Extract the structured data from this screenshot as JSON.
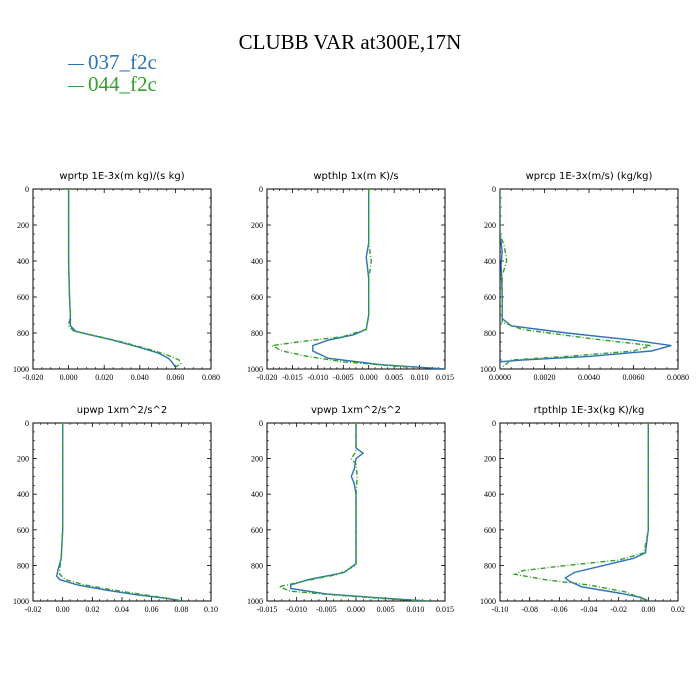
{
  "title": "CLUBB VAR at300E,17N",
  "legend": [
    {
      "label": "037_f2c",
      "color": "#2b72b8"
    },
    {
      "label": "044_f2c",
      "color": "#33a02c"
    }
  ],
  "chart_data": [
    {
      "type": "line",
      "title": "wprtp 1E-3x(m kg)/(s kg)",
      "xlim": [
        -0.02,
        0.08
      ],
      "xticks": [
        "-0.020",
        "0.000",
        "0.020",
        "0.040",
        "0.060",
        "0.080"
      ],
      "xtick_values": [
        -0.02,
        0.0,
        0.02,
        0.04,
        0.06,
        0.08
      ],
      "ylim": [
        1000,
        0
      ],
      "yticks": [
        "0",
        "200",
        "400",
        "600",
        "800",
        "1000"
      ],
      "series": [
        {
          "name": "037_f2c",
          "points": [
            [
              0.0,
              0
            ],
            [
              0.0,
              200
            ],
            [
              0.0,
              400
            ],
            [
              0.0005,
              600
            ],
            [
              0.001,
              700
            ],
            [
              0.001,
              760
            ],
            [
              0.004,
              790
            ],
            [
              0.012,
              810
            ],
            [
              0.025,
              840
            ],
            [
              0.04,
              880
            ],
            [
              0.05,
              910
            ],
            [
              0.056,
              940
            ],
            [
              0.058,
              960
            ],
            [
              0.06,
              990
            ]
          ]
        },
        {
          "name": "044_f2c",
          "points": [
            [
              0.0,
              0
            ],
            [
              0.0,
              200
            ],
            [
              0.0,
              400
            ],
            [
              0.0005,
              600
            ],
            [
              0.001,
              700
            ],
            [
              0.0,
              760
            ],
            [
              0.003,
              790
            ],
            [
              0.015,
              815
            ],
            [
              0.03,
              850
            ],
            [
              0.045,
              890
            ],
            [
              0.055,
              920
            ],
            [
              0.062,
              950
            ],
            [
              0.063,
              970
            ],
            [
              0.06,
              990
            ]
          ]
        }
      ]
    },
    {
      "type": "line",
      "title": "wpthlp 1x(m K)/s",
      "xlim": [
        -0.02,
        0.015
      ],
      "xticks": [
        "-0.020",
        "-0.015",
        "-0.010",
        "-0.005",
        "0.000",
        "0.005",
        "0.010",
        "0.015"
      ],
      "xtick_values": [
        -0.02,
        -0.015,
        -0.01,
        -0.005,
        0.0,
        0.005,
        0.01,
        0.015
      ],
      "ylim": [
        1000,
        0
      ],
      "yticks": [
        "0",
        "200",
        "400",
        "600",
        "800",
        "1000"
      ],
      "series": [
        {
          "name": "037_f2c",
          "points": [
            [
              0.0,
              0
            ],
            [
              0.0,
              300
            ],
            [
              -0.0005,
              380
            ],
            [
              -0.0003,
              420
            ],
            [
              0.0,
              500
            ],
            [
              0.0,
              700
            ],
            [
              -0.0005,
              780
            ],
            [
              -0.003,
              810
            ],
            [
              -0.008,
              840
            ],
            [
              -0.011,
              870
            ],
            [
              -0.011,
              900
            ],
            [
              -0.008,
              940
            ],
            [
              0.002,
              975
            ],
            [
              0.015,
              1000
            ]
          ]
        },
        {
          "name": "044_f2c",
          "points": [
            [
              0.0,
              0
            ],
            [
              0.0,
              300
            ],
            [
              0.0005,
              400
            ],
            [
              0.0,
              500
            ],
            [
              0.0,
              700
            ],
            [
              -0.0005,
              780
            ],
            [
              -0.005,
              820
            ],
            [
              -0.014,
              850
            ],
            [
              -0.019,
              870
            ],
            [
              -0.017,
              900
            ],
            [
              -0.012,
              930
            ],
            [
              -0.005,
              960
            ],
            [
              0.008,
              990
            ]
          ]
        }
      ]
    },
    {
      "type": "line",
      "title": "wprcp 1E-3x(m/s) (kg/kg)",
      "xlim": [
        0.0,
        0.008
      ],
      "xticks": [
        "0.0000",
        "0.0020",
        "0.0040",
        "0.0060",
        "0.0080"
      ],
      "xtick_values": [
        0.0,
        0.002,
        0.004,
        0.006,
        0.008
      ],
      "ylim": [
        1000,
        0
      ],
      "yticks": [
        "0",
        "200",
        "400",
        "600",
        "800",
        "1000"
      ],
      "series": [
        {
          "name": "037_f2c",
          "points": [
            [
              0.0,
              0
            ],
            [
              0.0,
              250
            ],
            [
              0.0001,
              350
            ],
            [
              5e-05,
              420
            ],
            [
              0.0001,
              600
            ],
            [
              0.0001,
              720
            ],
            [
              0.0005,
              760
            ],
            [
              0.003,
              800
            ],
            [
              0.006,
              840
            ],
            [
              0.0077,
              870
            ],
            [
              0.0068,
              900
            ],
            [
              0.004,
              930
            ],
            [
              0.001,
              950
            ],
            [
              0.0,
              960
            ],
            [
              0.0,
              1000
            ]
          ]
        },
        {
          "name": "044_f2c",
          "points": [
            [
              0.0,
              0
            ],
            [
              0.0,
              250
            ],
            [
              0.0002,
              320
            ],
            [
              0.0003,
              400
            ],
            [
              0.0001,
              480
            ],
            [
              0.0001,
              600
            ],
            [
              0.0001,
              740
            ],
            [
              0.001,
              780
            ],
            [
              0.004,
              830
            ],
            [
              0.0068,
              870
            ],
            [
              0.006,
              900
            ],
            [
              0.003,
              930
            ],
            [
              0.0005,
              950
            ],
            [
              0.0,
              1000
            ]
          ]
        }
      ]
    },
    {
      "type": "line",
      "title": "upwp 1xm^2/s^2",
      "xlim": [
        -0.02,
        0.1
      ],
      "xticks": [
        "-0.02",
        "0.00",
        "0.02",
        "0.04",
        "0.06",
        "0.08",
        "0.10"
      ],
      "xtick_values": [
        -0.02,
        0.0,
        0.02,
        0.04,
        0.06,
        0.08,
        0.1
      ],
      "ylim": [
        1000,
        0
      ],
      "yticks": [
        "0",
        "200",
        "400",
        "600",
        "800",
        "1000"
      ],
      "series": [
        {
          "name": "037_f2c",
          "points": [
            [
              0.0,
              0
            ],
            [
              0.0,
              200
            ],
            [
              0.0,
              400
            ],
            [
              0.0,
              600
            ],
            [
              -0.001,
              760
            ],
            [
              -0.003,
              820
            ],
            [
              -0.004,
              860
            ],
            [
              -0.002,
              880
            ],
            [
              0.01,
              910
            ],
            [
              0.03,
              940
            ],
            [
              0.05,
              965
            ],
            [
              0.07,
              985
            ],
            [
              0.08,
              1000
            ]
          ]
        },
        {
          "name": "044_f2c",
          "points": [
            [
              0.0,
              0
            ],
            [
              0.0,
              200
            ],
            [
              0.0,
              400
            ],
            [
              0.0,
              600
            ],
            [
              -0.001,
              760
            ],
            [
              -0.002,
              820
            ],
            [
              -0.002,
              850
            ],
            [
              0.002,
              880
            ],
            [
              0.015,
              910
            ],
            [
              0.035,
              940
            ],
            [
              0.055,
              965
            ],
            [
              0.075,
              990
            ],
            [
              0.08,
              1000
            ]
          ]
        }
      ]
    },
    {
      "type": "line",
      "title": "vpwp 1xm^2/s^2",
      "xlim": [
        -0.015,
        0.015
      ],
      "xticks": [
        "-0.015",
        "-0.010",
        "-0.005",
        "0.000",
        "0.005",
        "0.010",
        "0.015"
      ],
      "xtick_values": [
        -0.015,
        -0.01,
        -0.005,
        0.0,
        0.005,
        0.01,
        0.015
      ],
      "ylim": [
        1000,
        0
      ],
      "yticks": [
        "0",
        "200",
        "400",
        "600",
        "800",
        "1000"
      ],
      "series": [
        {
          "name": "037_f2c",
          "points": [
            [
              0.0,
              0
            ],
            [
              0.0,
              140
            ],
            [
              0.0012,
              170
            ],
            [
              0.0,
              200
            ],
            [
              -0.0003,
              260
            ],
            [
              -0.0008,
              300
            ],
            [
              -0.0003,
              340
            ],
            [
              0.0,
              400
            ],
            [
              0.0,
              700
            ],
            [
              0.0,
              790
            ],
            [
              -0.002,
              840
            ],
            [
              -0.008,
              880
            ],
            [
              -0.011,
              910
            ],
            [
              -0.011,
              930
            ],
            [
              -0.005,
              960
            ],
            [
              0.005,
              985
            ],
            [
              0.012,
              1000
            ]
          ]
        },
        {
          "name": "044_f2c",
          "points": [
            [
              0.0,
              0
            ],
            [
              0.0,
              160
            ],
            [
              -0.0008,
              200
            ],
            [
              0.0,
              230
            ],
            [
              0.0002,
              300
            ],
            [
              0.0,
              400
            ],
            [
              0.0,
              700
            ],
            [
              0.0,
              800
            ],
            [
              -0.003,
              850
            ],
            [
              -0.009,
              890
            ],
            [
              -0.013,
              920
            ],
            [
              -0.011,
              945
            ],
            [
              -0.004,
              965
            ],
            [
              0.006,
              990
            ],
            [
              0.012,
              1000
            ]
          ]
        }
      ]
    },
    {
      "type": "line",
      "title": "rtpthlp 1E-3x(kg K)/kg",
      "xlim": [
        -0.1,
        0.02
      ],
      "xticks": [
        "-0.10",
        "-0.08",
        "-0.06",
        "-0.04",
        "-0.02",
        "0.00",
        "0.02"
      ],
      "xtick_values": [
        -0.1,
        -0.08,
        -0.06,
        -0.04,
        -0.02,
        0.0,
        0.02
      ],
      "ylim": [
        1000,
        0
      ],
      "yticks": [
        "0",
        "200",
        "400",
        "600",
        "800",
        "1000"
      ],
      "series": [
        {
          "name": "037_f2c",
          "points": [
            [
              0.0,
              0
            ],
            [
              0.0,
              300
            ],
            [
              0.0,
              600
            ],
            [
              -0.002,
              730
            ],
            [
              -0.01,
              760
            ],
            [
              -0.03,
              800
            ],
            [
              -0.05,
              840
            ],
            [
              -0.056,
              870
            ],
            [
              -0.053,
              890
            ],
            [
              -0.045,
              920
            ],
            [
              -0.02,
              955
            ],
            [
              -0.005,
              980
            ],
            [
              0.0,
              1000
            ]
          ]
        },
        {
          "name": "044_f2c",
          "points": [
            [
              0.0,
              0
            ],
            [
              0.0,
              300
            ],
            [
              0.0,
              600
            ],
            [
              -0.003,
              730
            ],
            [
              -0.02,
              770
            ],
            [
              -0.055,
              800
            ],
            [
              -0.085,
              830
            ],
            [
              -0.09,
              850
            ],
            [
              -0.07,
              880
            ],
            [
              -0.04,
              910
            ],
            [
              -0.015,
              950
            ],
            [
              0.0,
              1000
            ]
          ]
        }
      ]
    }
  ]
}
